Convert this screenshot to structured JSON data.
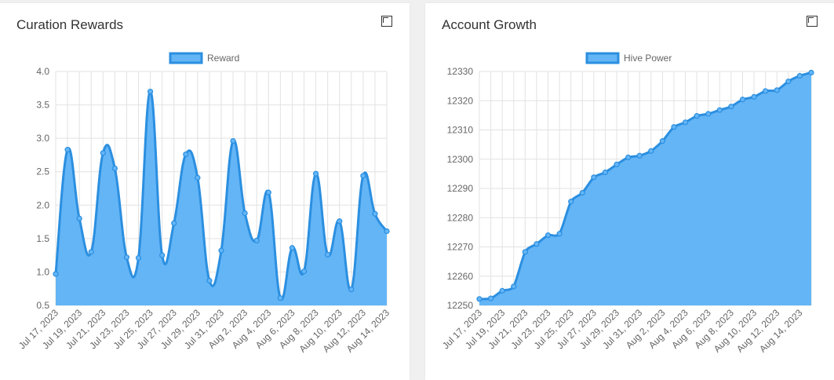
{
  "cards": [
    {
      "title": "Curation Rewards"
    },
    {
      "title": "Account Growth"
    }
  ],
  "colors": {
    "fill": "#64b5f6",
    "stroke": "#2b8fe0",
    "grid": "#e2e2e2",
    "axis": "#666666"
  },
  "chart_data": [
    {
      "type": "area",
      "title": "Curation Rewards",
      "legend": "top",
      "grid": true,
      "series": [
        {
          "name": "Reward",
          "values": [
            0.97,
            2.83,
            1.8,
            1.3,
            2.78,
            2.55,
            1.22,
            1.21,
            3.7,
            1.25,
            1.73,
            2.76,
            2.41,
            0.87,
            1.32,
            2.96,
            1.88,
            1.47,
            2.19,
            0.61,
            1.36,
            1.01,
            2.47,
            1.26,
            1.76,
            0.74,
            2.44,
            1.87,
            1.61
          ]
        }
      ],
      "categories": [
        "Jul 17, 2023",
        "Jul 18, 2023",
        "Jul 19, 2023",
        "Jul 20, 2023",
        "Jul 21, 2023",
        "Jul 22, 2023",
        "Jul 23, 2023",
        "Jul 24, 2023",
        "Jul 25, 2023",
        "Jul 26, 2023",
        "Jul 27, 2023",
        "Jul 28, 2023",
        "Jul 29, 2023",
        "Jul 30, 2023",
        "Jul 31, 2023",
        "Aug 1, 2023",
        "Aug 2, 2023",
        "Aug 3, 2023",
        "Aug 4, 2023",
        "Aug 5, 2023",
        "Aug 6, 2023",
        "Aug 7, 2023",
        "Aug 8, 2023",
        "Aug 9, 2023",
        "Aug 10, 2023",
        "Aug 11, 2023",
        "Aug 12, 2023",
        "Aug 13, 2023",
        "Aug 14, 2023"
      ],
      "x_tick_labels": [
        "Jul 17, 2023",
        "Jul 19, 2023",
        "Jul 21, 2023",
        "Jul 23, 2023",
        "Jul 25, 2023",
        "Jul 27, 2023",
        "Jul 29, 2023",
        "Jul 31, 2023",
        "Aug 2, 2023",
        "Aug 4, 2023",
        "Aug 6, 2023",
        "Aug 8, 2023",
        "Aug 10, 2023",
        "Aug 12, 2023",
        "Aug 14, 2023"
      ],
      "y_ticks": [
        "0.5",
        "1.0",
        "1.5",
        "2.0",
        "2.5",
        "3.0",
        "3.5",
        "4.0"
      ],
      "ylim": [
        0.5,
        4.0
      ]
    },
    {
      "type": "area",
      "title": "Account Growth",
      "legend": "top",
      "grid": true,
      "series": [
        {
          "name": "Hive Power",
          "values": [
            12252.2,
            12252.4,
            12255.0,
            12256.5,
            12268.3,
            12271.0,
            12274.0,
            12274.5,
            12285.5,
            12288.5,
            12293.8,
            12295.5,
            12298.2,
            12300.6,
            12301.2,
            12302.8,
            12306.2,
            12311.0,
            12312.6,
            12314.8,
            12315.5,
            12316.8,
            12318.0,
            12320.4,
            12321.3,
            12323.3,
            12323.6,
            12326.6,
            12328.5,
            12329.6
          ]
        }
      ],
      "categories": [
        "Jul 17, 2023",
        "Jul 18, 2023",
        "Jul 19, 2023",
        "Jul 20, 2023",
        "Jul 21, 2023",
        "Jul 22, 2023",
        "Jul 23, 2023",
        "Jul 24, 2023",
        "Jul 25, 2023",
        "Jul 26, 2023",
        "Jul 27, 2023",
        "Jul 28, 2023",
        "Jul 29, 2023",
        "Jul 30, 2023",
        "Jul 31, 2023",
        "Aug 1, 2023",
        "Aug 2, 2023",
        "Aug 3, 2023",
        "Aug 4, 2023",
        "Aug 5, 2023",
        "Aug 6, 2023",
        "Aug 7, 2023",
        "Aug 8, 2023",
        "Aug 9, 2023",
        "Aug 10, 2023",
        "Aug 11, 2023",
        "Aug 12, 2023",
        "Aug 13, 2023",
        "Aug 14, 2023",
        "Aug 15, 2023"
      ],
      "x_tick_labels": [
        "Jul 17, 2023",
        "Jul 19, 2023",
        "Jul 21, 2023",
        "Jul 23, 2023",
        "Jul 25, 2023",
        "Jul 27, 2023",
        "Jul 29, 2023",
        "Jul 31, 2023",
        "Aug 2, 2023",
        "Aug 4, 2023",
        "Aug 6, 2023",
        "Aug 8, 2023",
        "Aug 10, 2023",
        "Aug 12, 2023",
        "Aug 14, 2023"
      ],
      "y_ticks": [
        "12250",
        "12260",
        "12270",
        "12280",
        "12290",
        "12300",
        "12310",
        "12320",
        "12330"
      ],
      "ylim": [
        12250,
        12330
      ]
    }
  ]
}
